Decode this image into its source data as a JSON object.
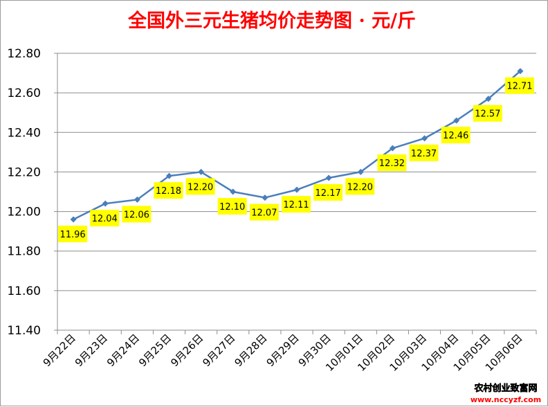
{
  "chart_data": {
    "type": "line",
    "title": "全国外三元生猪均价走势图 · 元/斤",
    "xlabel": "",
    "ylabel": "",
    "categories": [
      "9月22日",
      "9月23日",
      "9月24日",
      "9月25日",
      "9月26日",
      "9月27日",
      "9月28日",
      "9月29日",
      "9月30日",
      "10月01日",
      "10月02日",
      "10月03日",
      "10月04日",
      "10月05日",
      "10月06日"
    ],
    "values": [
      11.96,
      12.04,
      12.06,
      12.18,
      12.2,
      12.1,
      12.07,
      12.11,
      12.17,
      12.2,
      12.32,
      12.37,
      12.46,
      12.57,
      12.71
    ],
    "data_labels": [
      "11.96",
      "12.04",
      "12.06",
      "12.18",
      "12.20",
      "12.10",
      "12.07",
      "12.11",
      "12.17",
      "12.20",
      "12.32",
      "12.37",
      "12.46",
      "12.57",
      "12.71"
    ],
    "ylim": [
      11.4,
      12.8
    ],
    "yticks": [
      "11.40",
      "11.60",
      "11.80",
      "12.00",
      "12.20",
      "12.40",
      "12.60",
      "12.80"
    ],
    "grid": true,
    "legend": "none",
    "colors": {
      "line": "#4a7ebb",
      "label_bg": "#ffff00",
      "title": "#ff0000"
    }
  },
  "watermark": {
    "line1": "农村创业致富网",
    "line2": "www.nccyzf.com",
    "color1": "#ffff00",
    "color2": "#ff0000"
  }
}
